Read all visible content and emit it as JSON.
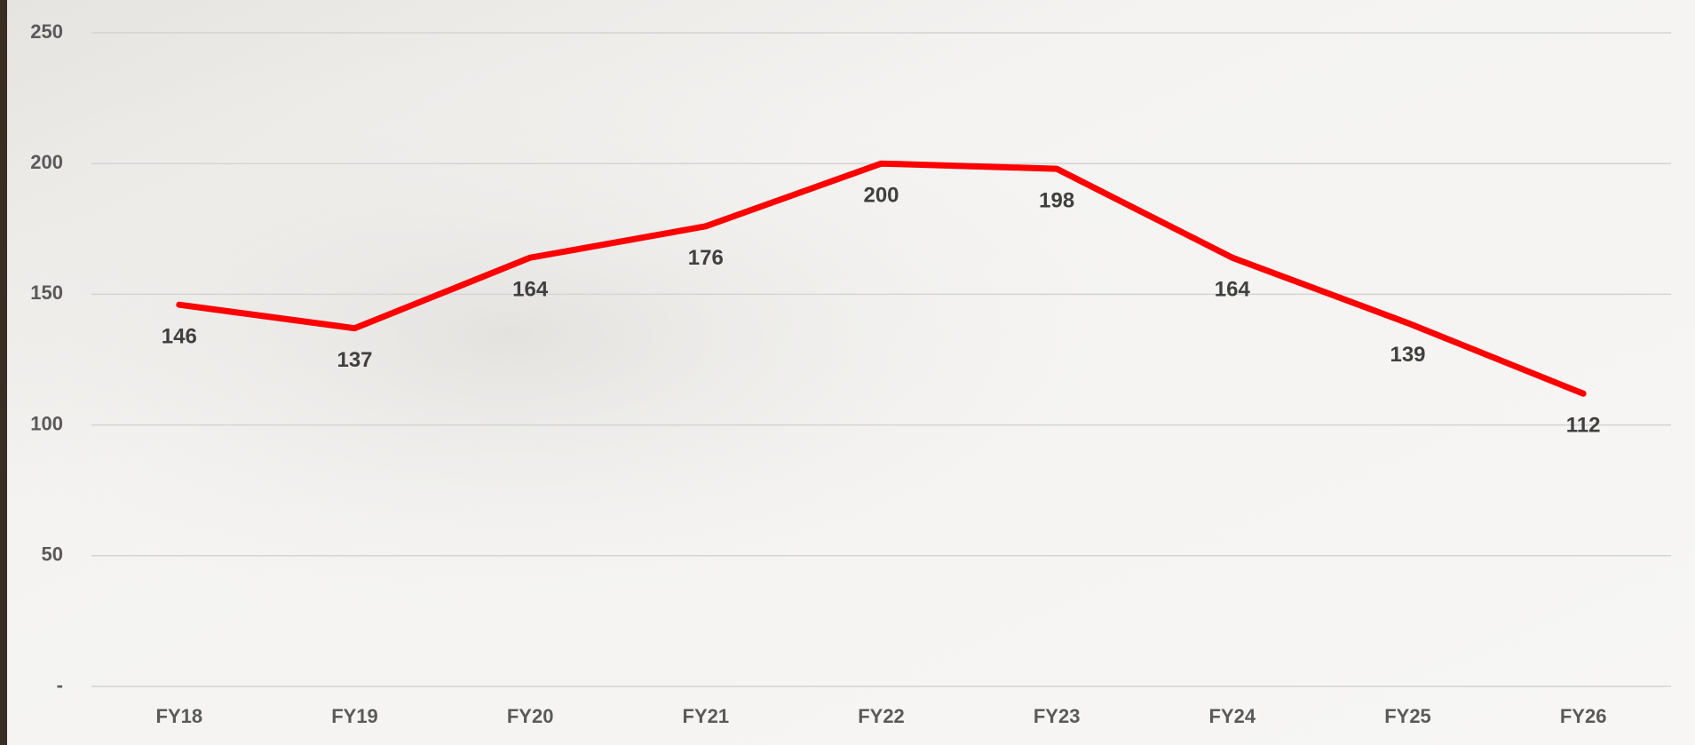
{
  "chart_data": {
    "type": "line",
    "categories": [
      "FY18",
      "FY19",
      "FY20",
      "FY21",
      "FY22",
      "FY23",
      "FY24",
      "FY25",
      "FY26"
    ],
    "values": [
      146,
      137,
      164,
      176,
      200,
      198,
      164,
      139,
      112
    ],
    "color": "#ff0000",
    "ylim": [
      0,
      250
    ],
    "yticks": [
      {
        "value": 0,
        "label": "-"
      },
      50,
      100,
      150,
      200,
      250
    ],
    "grid": true
  }
}
